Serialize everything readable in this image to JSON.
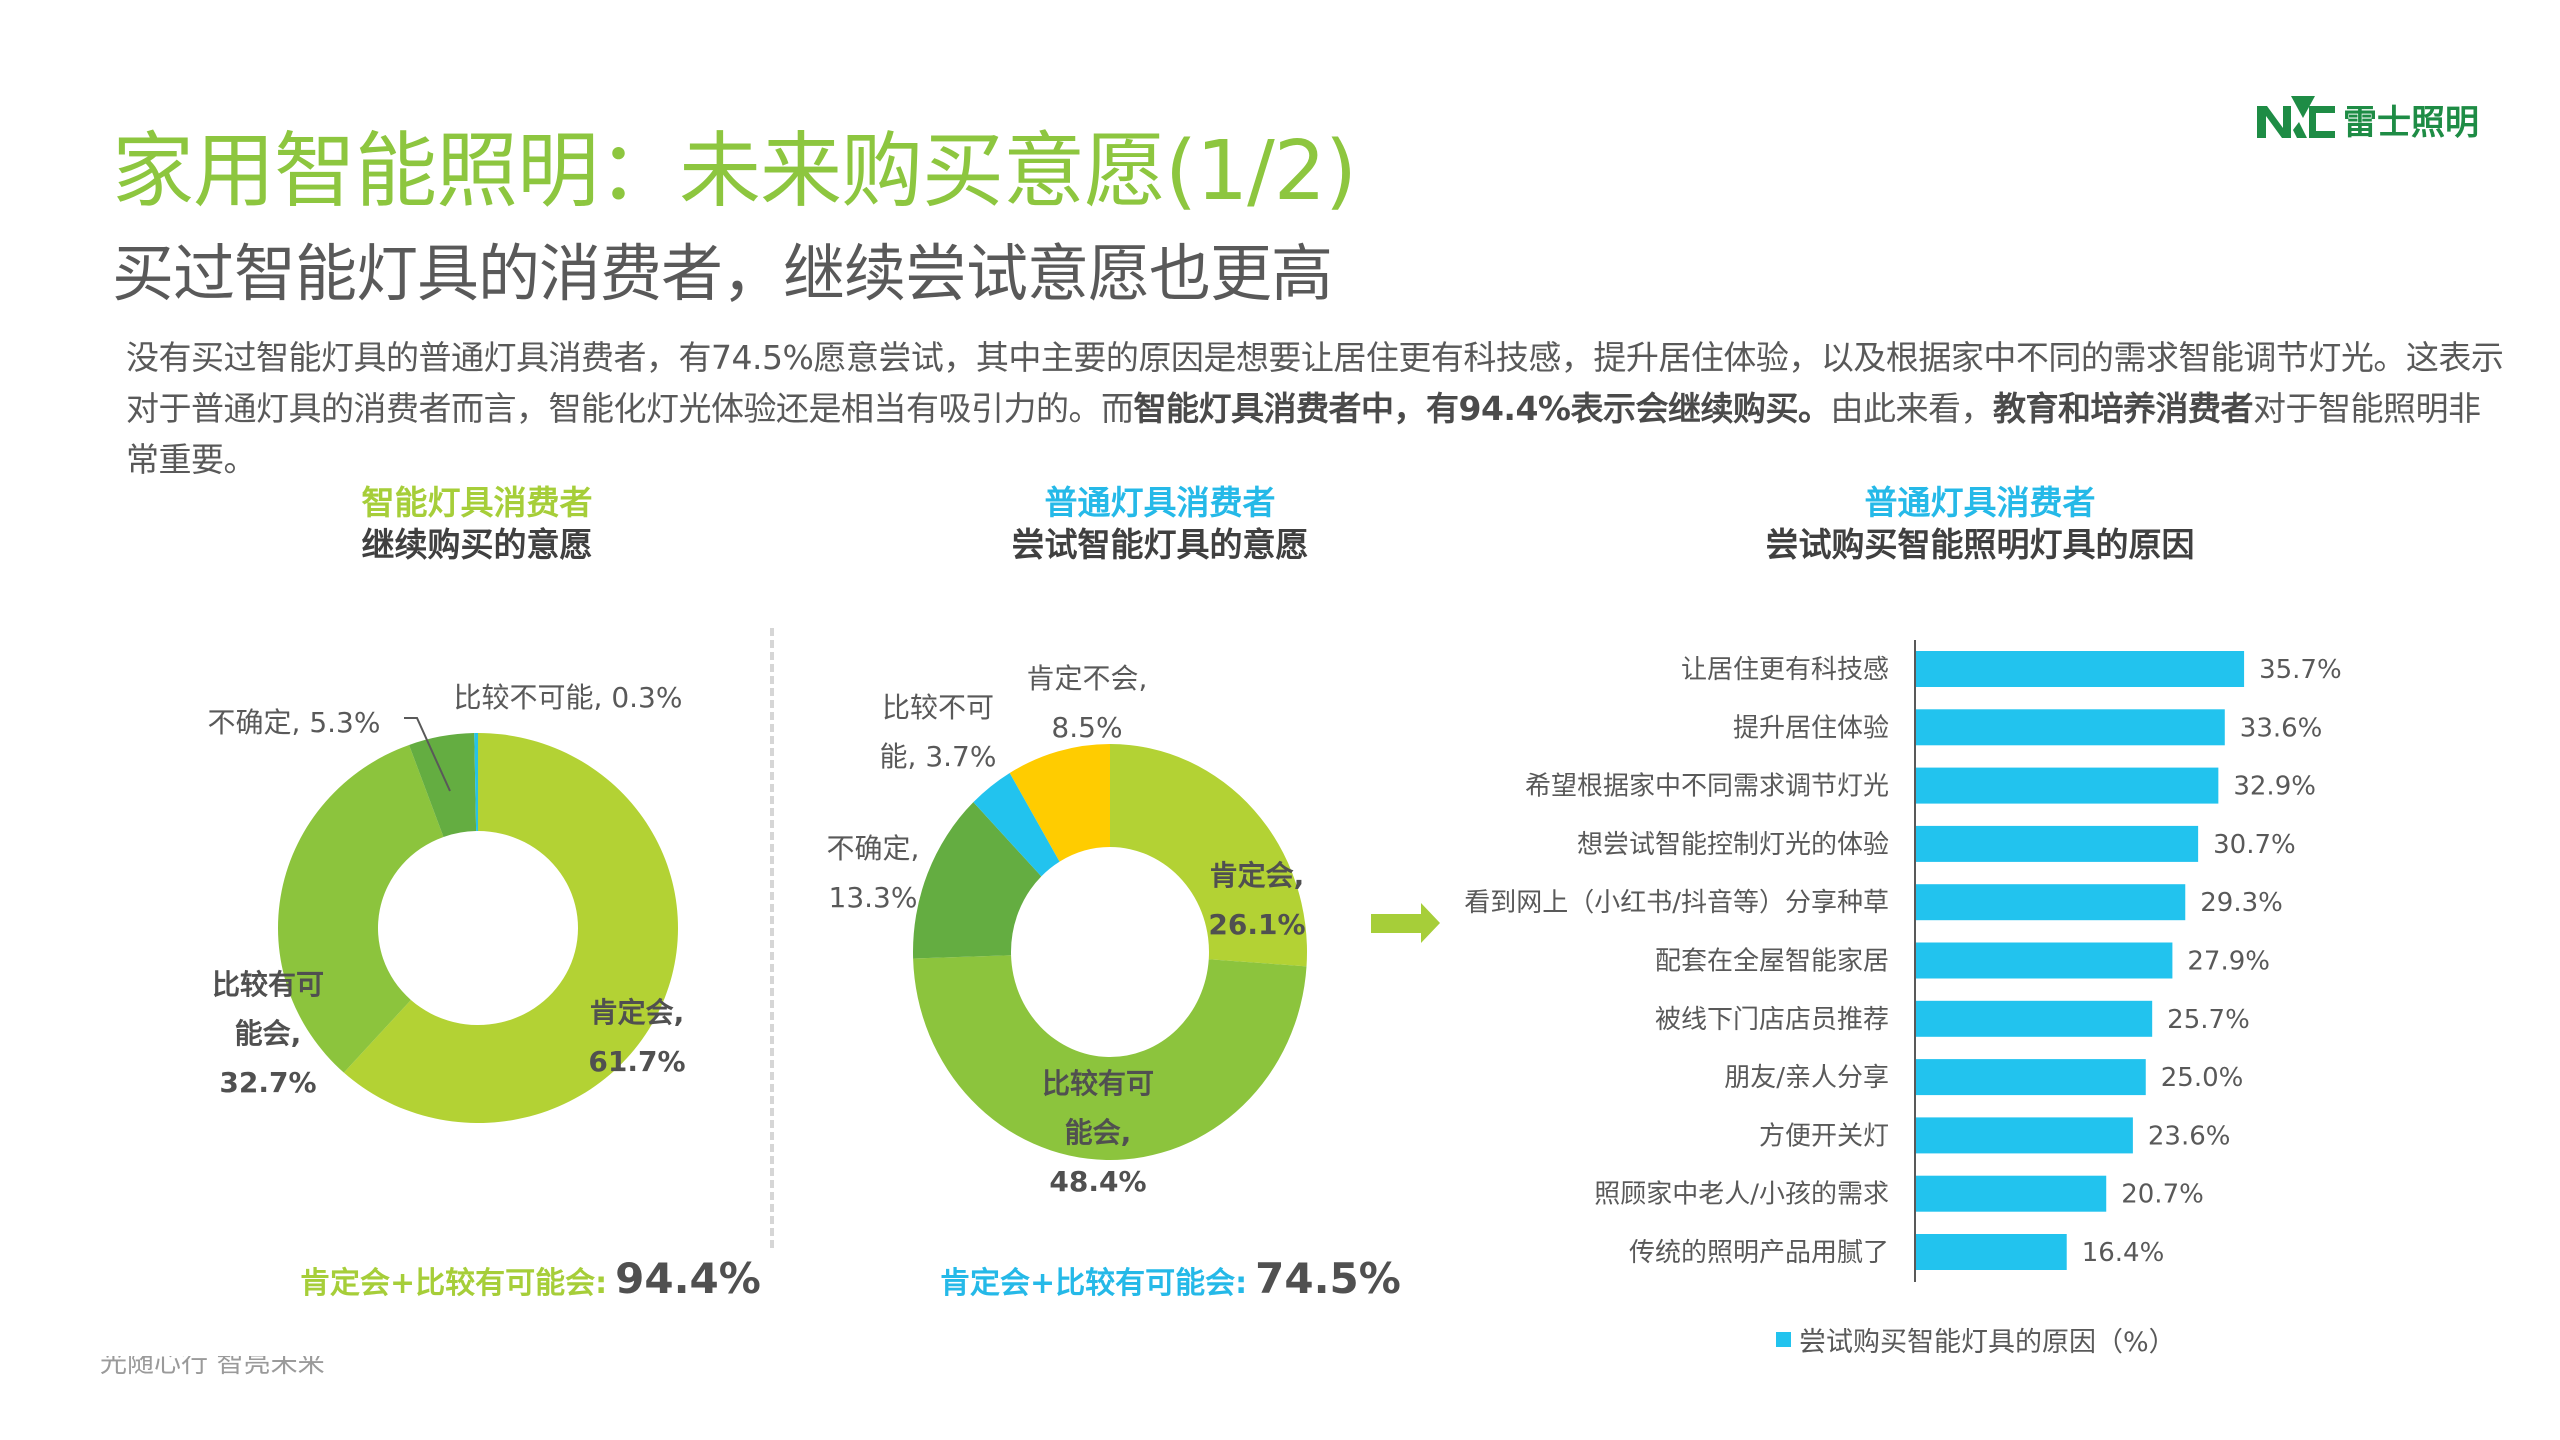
{
  "header": {
    "title": "家用智能照明：未来购买意愿(1/2)",
    "subtitle": "买过智能灯具的消费者，继续尝试意愿也更高",
    "logo_mark": "NVC",
    "logo_text": "雷士照明"
  },
  "summary": {
    "p1": "没有买过智能灯具的普通灯具消费者，有74.5%愿意尝试，其中主要的原因是想要让居住更有科技感，提升居住体验，以及根据家中不同的需求智能调节灯光。这表示对于普通灯具的消费者而言，智能化灯光体验还是相当有吸引力的。而",
    "b1": "智能灯具消费者中，有94.4%表示会继续购买。",
    "p2": "由此来看，",
    "b2": "教育和培养消费者",
    "p3": "对于智能照明非常重要。"
  },
  "colors": {
    "title_green": "#8DC63F",
    "lime": "#B3D234",
    "mid_green": "#8CC43D",
    "dark_green": "#64AD41",
    "cyan": "#22C3EE",
    "yellow": "#FFCC00",
    "bar": "#22C3EE"
  },
  "sections": [
    {
      "line1": "智能灯具消费者",
      "line2": "继续购买的意愿"
    },
    {
      "line1": "普通灯具消费者",
      "line2": "尝试智能灯具的意愿"
    },
    {
      "line1": "普通灯具消费者",
      "line2": "尝试购买智能照明灯具的原因"
    }
  ],
  "chart_data": [
    {
      "type": "pie",
      "title": "智能灯具消费者 继续购买的意愿",
      "donut": true,
      "slices": [
        {
          "label": "肯定会",
          "value": 61.7,
          "display": [
            "肯定会,",
            "61.7%"
          ],
          "color": "#B3D234"
        },
        {
          "label": "比较有可能会",
          "value": 32.7,
          "display": [
            "比较有可",
            "能会,",
            "32.7%"
          ],
          "color": "#8CC43D"
        },
        {
          "label": "不确定",
          "value": 5.3,
          "display": [
            "不确定, 5.3%"
          ],
          "color": "#64AD41"
        },
        {
          "label": "比较不可能",
          "value": 0.3,
          "display": [
            "比较不可能, 0.3%"
          ],
          "color": "#27C2E6"
        }
      ],
      "total_label": "肯定会+比较有可能会:",
      "total_value": "94.4%"
    },
    {
      "type": "pie",
      "title": "普通灯具消费者 尝试智能灯具的意愿",
      "donut": true,
      "slices": [
        {
          "label": "肯定会",
          "value": 26.1,
          "display": [
            "肯定会,",
            "26.1%"
          ],
          "color": "#B3D234"
        },
        {
          "label": "比较有可能会",
          "value": 48.4,
          "display": [
            "比较有可",
            "能会,",
            "48.4%"
          ],
          "color": "#8CC43D"
        },
        {
          "label": "不确定",
          "value": 13.3,
          "display": [
            "不确定,",
            "13.3%"
          ],
          "color": "#64AD41"
        },
        {
          "label": "比较不可能",
          "value": 3.7,
          "display": [
            "比较不可",
            "能, 3.7%"
          ],
          "color": "#22C3EE"
        },
        {
          "label": "肯定不会",
          "value": 8.5,
          "display": [
            "肯定不会,",
            "8.5%"
          ],
          "color": "#FFCC00"
        }
      ],
      "total_label": "肯定会+比较有可能会:",
      "total_value": "74.5%"
    },
    {
      "type": "bar",
      "orientation": "horizontal",
      "title": "普通灯具消费者 尝试购买智能照明灯具的原因",
      "categories": [
        "让居住更有科技感",
        "提升居住体验",
        "希望根据家中不同需求调节灯光",
        "想尝试智能控制灯光的体验",
        "看到网上（小红书/抖音等）分享种草",
        "配套在全屋智能家居",
        "被线下门店店员推荐",
        "朋友/亲人分享",
        "方便开关灯",
        "照顾家中老人/小孩的需求",
        "传统的照明产品用腻了"
      ],
      "values": [
        35.7,
        33.6,
        32.9,
        30.7,
        29.3,
        27.9,
        25.7,
        25.0,
        23.6,
        20.7,
        16.4
      ],
      "value_labels": [
        "35.7%",
        "33.6%",
        "32.9%",
        "30.7%",
        "29.3%",
        "27.9%",
        "25.7%",
        "25.0%",
        "23.6%",
        "20.7%",
        "16.4%"
      ],
      "legend": "尝试购买智能灯具的原因（%）",
      "xlim": [
        0,
        40
      ],
      "grid": false
    }
  ],
  "footer": {
    "slogan": "光随心行   智亮未来"
  }
}
